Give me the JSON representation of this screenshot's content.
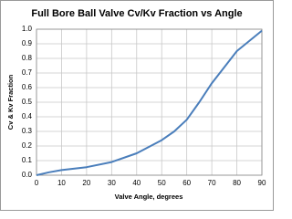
{
  "chart_data": {
    "type": "line",
    "title": "Full Bore Ball Valve Cv/Kv Fraction vs Angle",
    "x_label": "Valve Angle, degrees",
    "y_label": "Cv & Kv Fraction",
    "x": [
      0,
      5,
      10,
      20,
      30,
      40,
      50,
      55,
      60,
      65,
      70,
      80,
      90
    ],
    "series": [
      {
        "name": "Cv/Kv Fraction",
        "color": "#4a7ebb",
        "values": [
          0,
          0.02,
          0.035,
          0.055,
          0.09,
          0.15,
          0.24,
          0.3,
          0.38,
          0.5,
          0.63,
          0.85,
          0.99
        ]
      }
    ],
    "xlim": [
      0,
      90
    ],
    "xticks": [
      0,
      10,
      20,
      30,
      40,
      50,
      60,
      70,
      80,
      90
    ],
    "ylim": [
      0,
      1
    ],
    "yticks": [
      {
        "value": 0,
        "label": "0.0"
      },
      0.1,
      0.2,
      0.3,
      0.4,
      0.5,
      0.6,
      0.7,
      0.8,
      0.9,
      {
        "value": 1,
        "label": "1.0"
      }
    ],
    "grid": true
  }
}
